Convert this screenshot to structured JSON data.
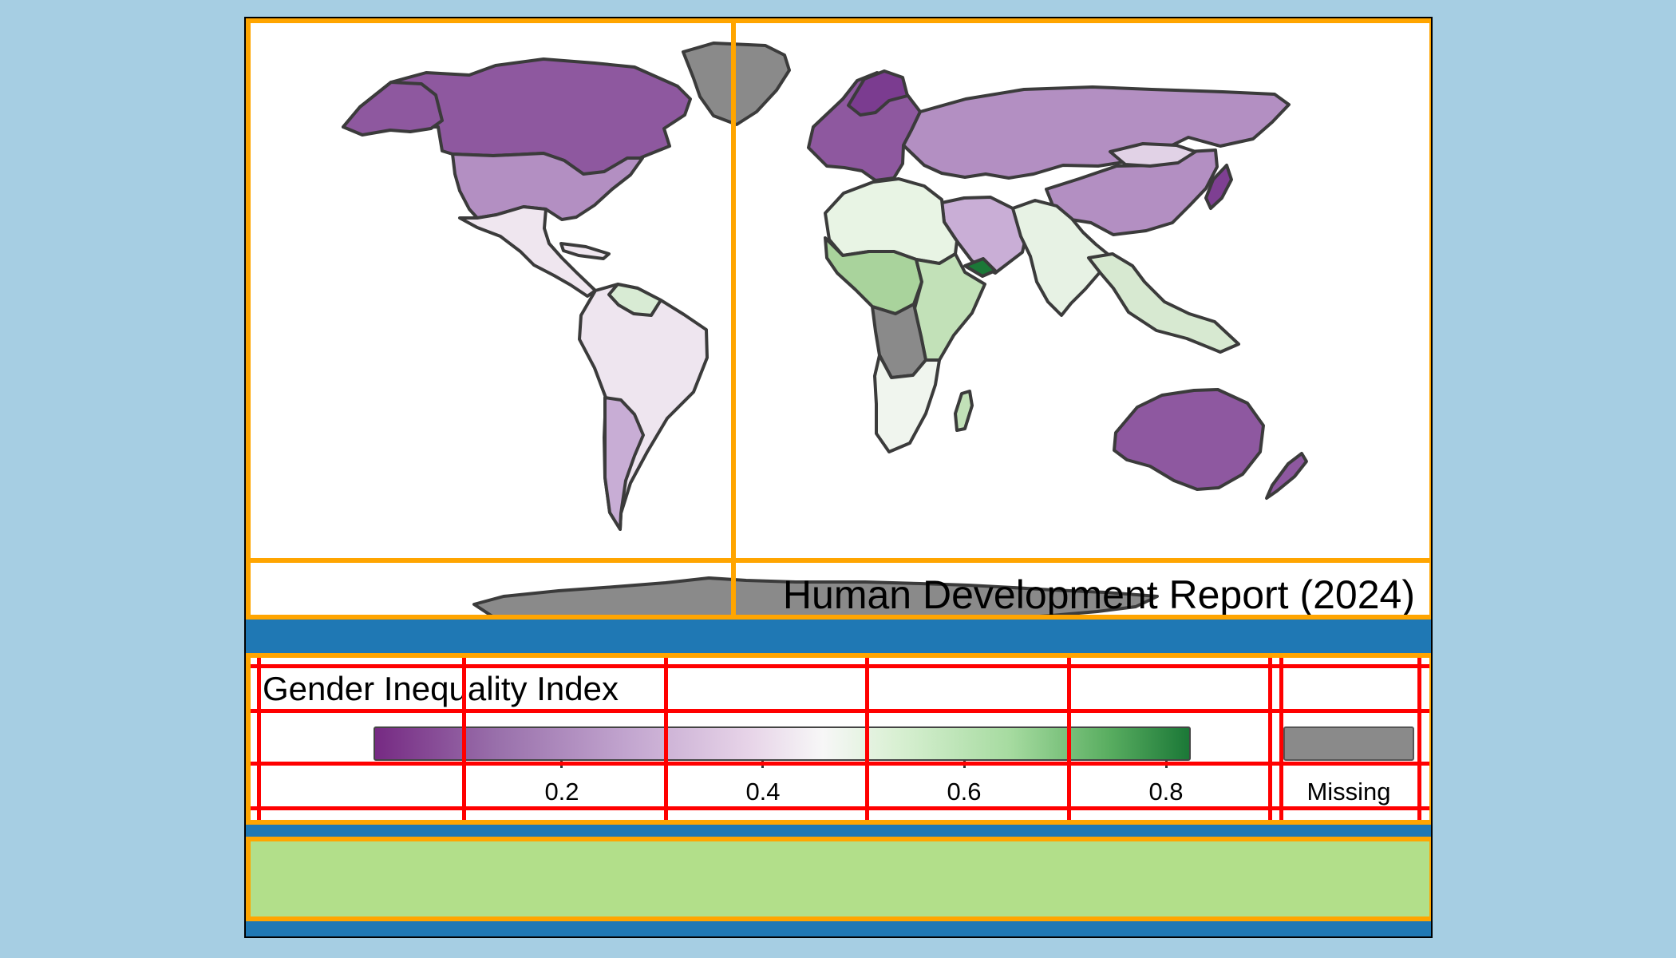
{
  "map": {
    "title": "Human Development Report (2024)",
    "missing_color": "#8a8a8a",
    "border_color": "#3b3b3b",
    "regions": [
      {
        "name": "Greenland",
        "color": "#8a8a8a"
      },
      {
        "name": "Canada",
        "color": "#8e589f"
      },
      {
        "name": "United States",
        "color": "#b38fc2"
      },
      {
        "name": "Mexico and Central America",
        "color": "#efe6ef"
      },
      {
        "name": "South America",
        "color": "#eee5ef"
      },
      {
        "name": "Europe",
        "color": "#8e589f"
      },
      {
        "name": "Russia and Central Asia",
        "color": "#b38fc2"
      },
      {
        "name": "China",
        "color": "#b38fc2"
      },
      {
        "name": "India and South Asia",
        "color": "#e7f2e4"
      },
      {
        "name": "Middle East",
        "color": "#c9aed6"
      },
      {
        "name": "North Africa",
        "color": "#e8f4e4"
      },
      {
        "name": "West and Central Africa",
        "color": "#a9d39c"
      },
      {
        "name": "East Africa",
        "color": "#c2e1b8"
      },
      {
        "name": "Southern Africa",
        "color": "#f0f5ee"
      },
      {
        "name": "Madagascar",
        "color": "#c2e1b8"
      },
      {
        "name": "Southeast Asia",
        "color": "#d7e9d1"
      },
      {
        "name": "Japan",
        "color": "#7e3f92"
      },
      {
        "name": "Australia",
        "color": "#8e58a0"
      },
      {
        "name": "New Zealand",
        "color": "#8e58a0"
      },
      {
        "name": "Antarctica",
        "color": "#8a8a8a"
      }
    ]
  },
  "legend": {
    "title": "Gender Inequality Index",
    "ticks": [
      "0.2",
      "0.4",
      "0.6",
      "0.8"
    ],
    "missing_label": "Missing",
    "gradient_colors": [
      "#762a83",
      "#9970ab",
      "#c2a5cf",
      "#e7d4e8",
      "#f7f7f7",
      "#d9f0d3",
      "#a6dba0",
      "#5aae61",
      "#1b7837"
    ]
  }
}
